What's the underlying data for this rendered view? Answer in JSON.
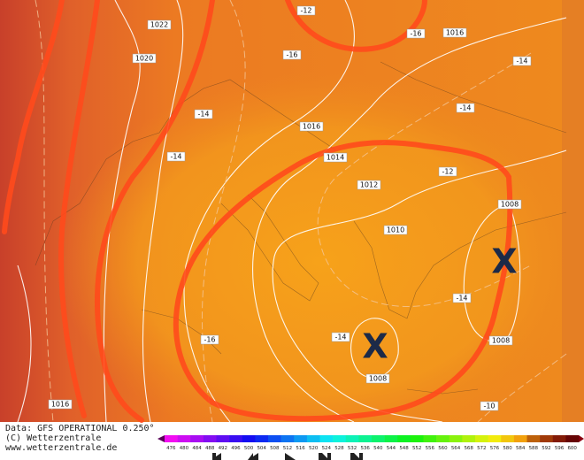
{
  "map": {
    "isobars": [
      "1022",
      "1020",
      "1016",
      "1016",
      "1014",
      "1012",
      "1010",
      "1008",
      "1008",
      "1008",
      "1016"
    ],
    "temperatures": [
      "-12",
      "-16",
      "-14",
      "-16",
      "-14",
      "-14",
      "-14",
      "-12",
      "-14",
      "-16",
      "-14",
      "-10"
    ],
    "markers": [
      "X",
      "X"
    ]
  },
  "footer": {
    "source": "Data: GFS OPERATIONAL 0.250°",
    "copyright": "(C) Wetterzentrale",
    "url": "www.wetterzentrale.de"
  },
  "colorbar": {
    "labels": [
      476,
      480,
      484,
      488,
      492,
      496,
      500,
      504,
      508,
      512,
      516,
      520,
      524,
      528,
      532,
      536,
      540,
      544,
      548,
      552,
      556,
      560,
      564,
      568,
      572,
      576,
      580,
      584,
      588,
      592,
      596,
      600
    ]
  }
}
